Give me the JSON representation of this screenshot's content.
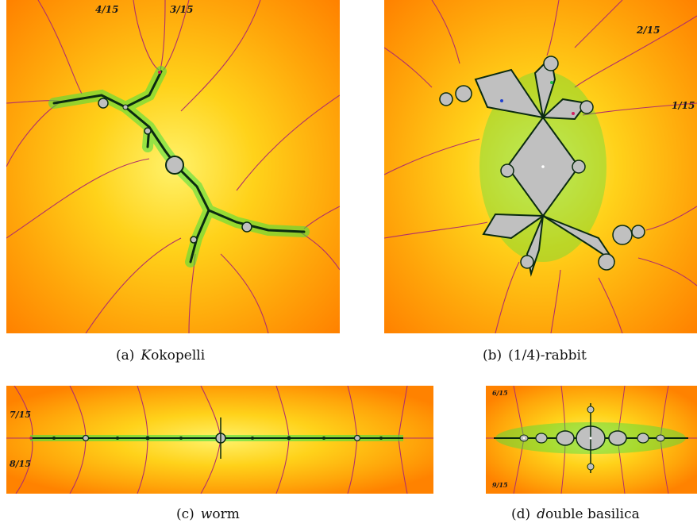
{
  "figure": {
    "panels": [
      {
        "id": "a",
        "label": "(a)",
        "name_initial": "K",
        "name_rest": "okopelli",
        "angles": [
          "4/15",
          "3/15"
        ]
      },
      {
        "id": "b",
        "label": "(b)",
        "name_initial": "",
        "name_rest": "(1/4)-rabbit",
        "angles": [
          "2/15",
          "1/15"
        ]
      },
      {
        "id": "c",
        "label": "(c)",
        "name_initial": "w",
        "name_rest": "orm",
        "angles": [
          "7/15",
          "8/15"
        ]
      },
      {
        "id": "d",
        "label": "(d)",
        "name_initial": "d",
        "name_rest": "ouble basilica",
        "angles": [
          "6/15",
          "9/15"
        ]
      }
    ],
    "colors": {
      "background_far": "#ff8a00",
      "background_near": "#ffe030",
      "rays": "#b0306a",
      "julia_filled": "#c0c0c0",
      "julia_boundary": "#0a2a10",
      "julia_halo": "#40e040"
    }
  }
}
